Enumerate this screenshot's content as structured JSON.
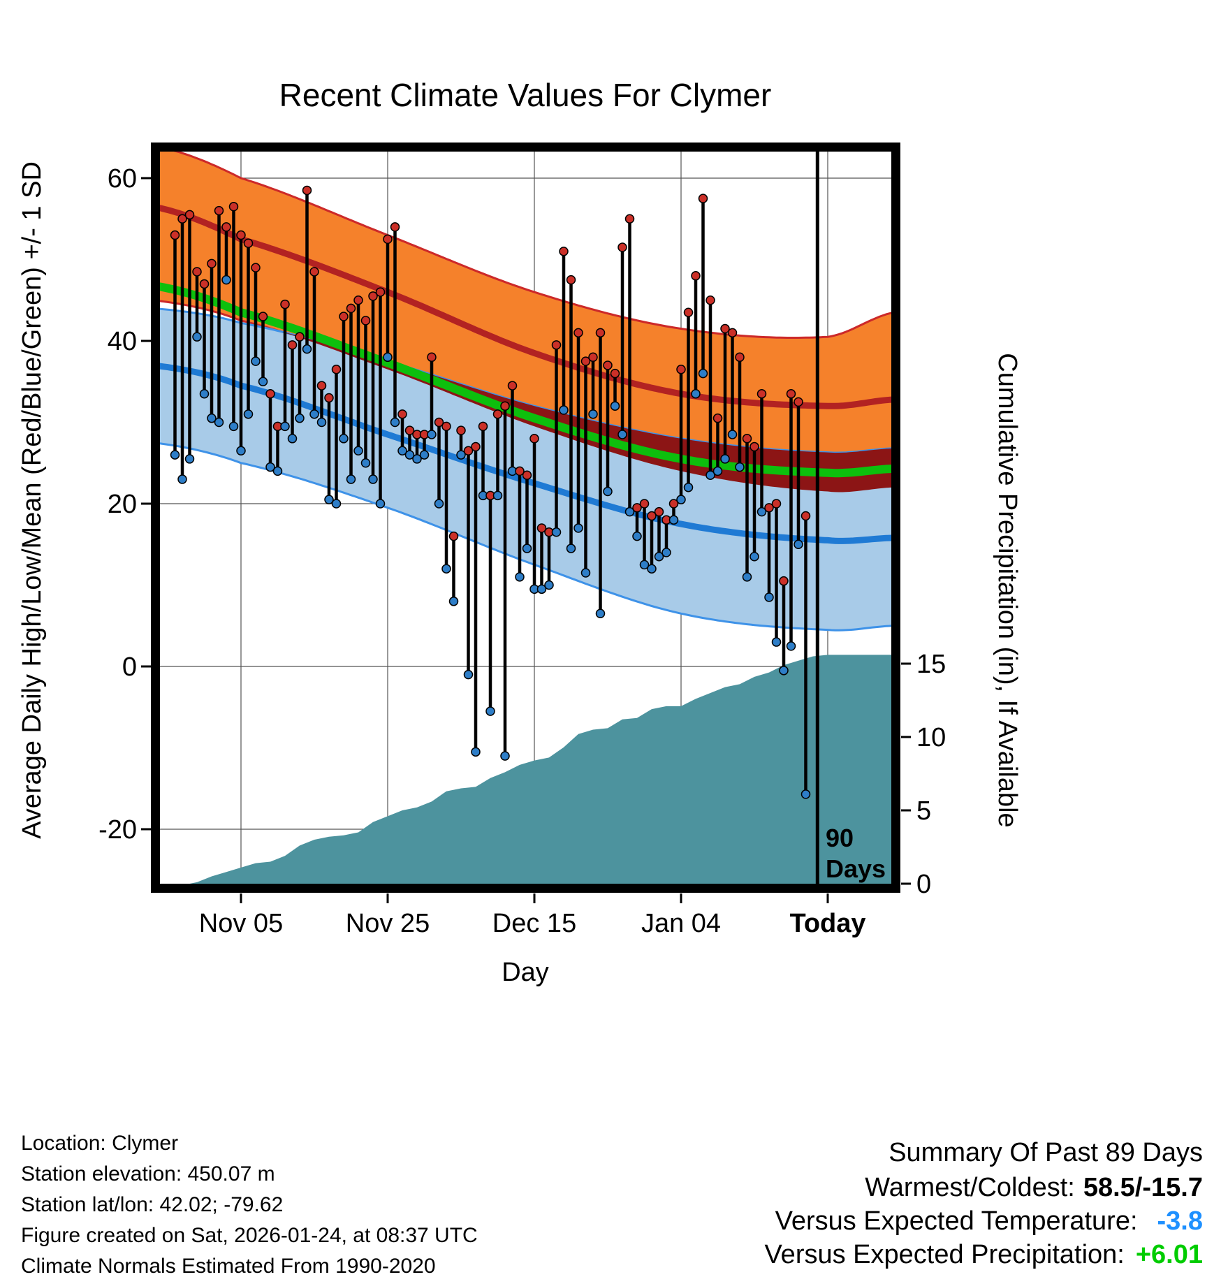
{
  "chart_data": {
    "type": "line",
    "subtype": "climatology-bands + daily high/low stems + cumulative precipitation area",
    "title": "Recent Climate Values For Clymer",
    "x_axis": {
      "label": "Day",
      "ticks": [
        {
          "day": 9,
          "label": "Nov 05",
          "bold": false
        },
        {
          "day": 29,
          "label": "Nov 25",
          "bold": false
        },
        {
          "day": 49,
          "label": "Dec 15",
          "bold": false
        },
        {
          "day": 69,
          "label": "Jan 04",
          "bold": false
        },
        {
          "day": 89,
          "label": "Today",
          "bold": true
        }
      ]
    },
    "temp_axis": {
      "label": "Average Daily High/Low/Mean (Red/Blue/Green) +/- 1 SD",
      "ticks": [
        60,
        40,
        20,
        0,
        -20
      ],
      "range": [
        -27,
        64
      ]
    },
    "precip_axis": {
      "label": "Cumulative Precipitation (in), If Available",
      "ticks": [
        15,
        10,
        5,
        0
      ],
      "range": [
        0,
        17
      ]
    },
    "daily": {
      "start_day": 0,
      "high": [
        53,
        55,
        55.5,
        48.5,
        47,
        49.5,
        56,
        54,
        56.5,
        53,
        52,
        49,
        43,
        33.5,
        29.5,
        44.5,
        39.5,
        40.5,
        58.5,
        48.5,
        34.5,
        33,
        36.5,
        43,
        44,
        45,
        42.5,
        45.5,
        46,
        52.5,
        54,
        31,
        29,
        28.5,
        28.5,
        38,
        30,
        29.5,
        16,
        29,
        26.5,
        27,
        29.5,
        21,
        31,
        32,
        34.5,
        24,
        23.5,
        28,
        17,
        16.5,
        39.5,
        51,
        47.5,
        41,
        37.5,
        38,
        41,
        37,
        36,
        51.5,
        55,
        19.5,
        20,
        18.5,
        19,
        18,
        20,
        36.5,
        43.5,
        48,
        57.5,
        45,
        30.5,
        41.5,
        41,
        38,
        28,
        27,
        33.5,
        19.5,
        20,
        10.5,
        33.5,
        32.5,
        18.5
      ],
      "low": [
        26,
        23,
        25.5,
        40.5,
        33.5,
        30.5,
        30,
        47.5,
        29.5,
        26.5,
        31,
        37.5,
        35,
        24.5,
        24,
        29.5,
        28,
        30.5,
        39,
        31,
        30,
        20.5,
        20,
        28,
        23,
        26.5,
        25,
        23,
        20,
        38,
        30,
        26.5,
        26,
        25.5,
        26,
        28.5,
        20,
        12,
        8,
        26,
        -1,
        -10.5,
        21,
        -5.5,
        21,
        -11,
        24,
        11,
        14.5,
        9.5,
        9.5,
        10,
        16.5,
        31.5,
        14.5,
        17,
        11.5,
        31,
        6.5,
        21.5,
        32,
        28.5,
        19,
        16,
        12.5,
        12,
        13.5,
        14,
        18,
        20.5,
        22,
        33.5,
        36,
        23.5,
        24,
        25.5,
        28.5,
        24.5,
        11,
        13.5,
        19,
        8.5,
        3,
        -0.5,
        2.5,
        15,
        -15.7
      ]
    },
    "climatology": {
      "high_upper": {
        "d": [
          -3,
          9,
          29,
          49,
          69,
          89,
          98
        ],
        "v": [
          64,
          60,
          53,
          46,
          41.5,
          40.5,
          43.5
        ]
      },
      "mean_high": {
        "d": [
          -3,
          9,
          29,
          49,
          69,
          89,
          98
        ],
        "v": [
          56.5,
          52.5,
          46,
          38.5,
          33.5,
          32,
          32.8
        ]
      },
      "high_lower": {
        "d": [
          -3,
          9,
          29,
          49,
          69,
          89,
          98
        ],
        "v": [
          45,
          42.5,
          36.5,
          29.5,
          24,
          21.5,
          22
        ]
      },
      "low_upper": {
        "d": [
          -3,
          9,
          29,
          49,
          69,
          89,
          98
        ],
        "v": [
          44,
          42.2,
          37.5,
          32,
          28,
          26.3,
          26.8
        ]
      },
      "mean_temp": {
        "d": [
          -3,
          9,
          29,
          49,
          69,
          89,
          98
        ],
        "v": [
          46.8,
          43.5,
          37.3,
          30.5,
          25.5,
          23.8,
          24.3
        ]
      },
      "mean_low": {
        "d": [
          -3,
          9,
          29,
          49,
          69,
          89,
          98
        ],
        "v": [
          37,
          34.5,
          28.5,
          22.5,
          17.5,
          15.5,
          15.8
        ]
      },
      "low_lower": {
        "d": [
          -3,
          9,
          29,
          49,
          69,
          89,
          98
        ],
        "v": [
          27.5,
          25,
          19.5,
          12.5,
          6.5,
          4.5,
          5
        ]
      }
    },
    "precip_cumulative": {
      "d": [
        2,
        3,
        5,
        7,
        9,
        11,
        13,
        15,
        17,
        19,
        21,
        23,
        25,
        27,
        29,
        31,
        33,
        35,
        37,
        39,
        41,
        43,
        45,
        47,
        49,
        51,
        53,
        55,
        57,
        59,
        61,
        63,
        65,
        67,
        69,
        71,
        73,
        75,
        77,
        79,
        81,
        83,
        85,
        87,
        89,
        98
      ],
      "v": [
        0,
        0.1,
        0.5,
        0.8,
        1.1,
        1.4,
        1.5,
        1.9,
        2.6,
        3.0,
        3.2,
        3.3,
        3.5,
        4.2,
        4.6,
        5.0,
        5.2,
        5.6,
        6.3,
        6.5,
        6.6,
        7.2,
        7.6,
        8.1,
        8.4,
        8.6,
        9.3,
        10.2,
        10.5,
        10.6,
        11.2,
        11.3,
        11.9,
        12.1,
        12.1,
        12.6,
        13.0,
        13.4,
        13.6,
        14.1,
        14.4,
        14.9,
        15.2,
        15.5,
        15.6,
        15.6
      ]
    },
    "annotations": {
      "vline_day": 87.6,
      "vline_label_line1": "90",
      "vline_label_line2": "Days"
    },
    "legend_position": "none",
    "grid": true
  },
  "footer": {
    "lines": [
      "Location: Clymer",
      "Station elevation: 450.07 m",
      "Station lat/lon: 42.02; -79.62",
      "Figure created on Sat, 2026-01-24, at 08:37 UTC",
      "Climate Normals Estimated From 1990-2020"
    ]
  },
  "summary": {
    "header": "Summary Of Past 89 Days",
    "warmest_coldest_label": "Warmest/Coldest:",
    "warmest_coldest_value": "58.5/-15.7",
    "vs_temp_label": "Versus Expected Temperature:",
    "vs_temp_value": "-3.8",
    "vs_precip_label": "Versus Expected Precipitation:",
    "vs_precip_value": "+6.01"
  },
  "colors": {
    "band_high": "#F5812B",
    "band_high_edge": "#CC2929",
    "mean_high_line": "#B22222",
    "band_overlap": "#8C1515",
    "band_low": "#A8CBE8",
    "band_low_edge": "#3E92E8",
    "mean_low_line": "#1F7AD4",
    "mean_temp_line": "#0DBF0D",
    "precip_fill": "#4D939E",
    "daily_stem": "#000000",
    "high_dot": "#CB3028",
    "low_dot": "#2E7EC8",
    "grid": "#555555",
    "vs_temp_value_color": "#1E90FF",
    "vs_precip_value_color": "#00CC00"
  }
}
